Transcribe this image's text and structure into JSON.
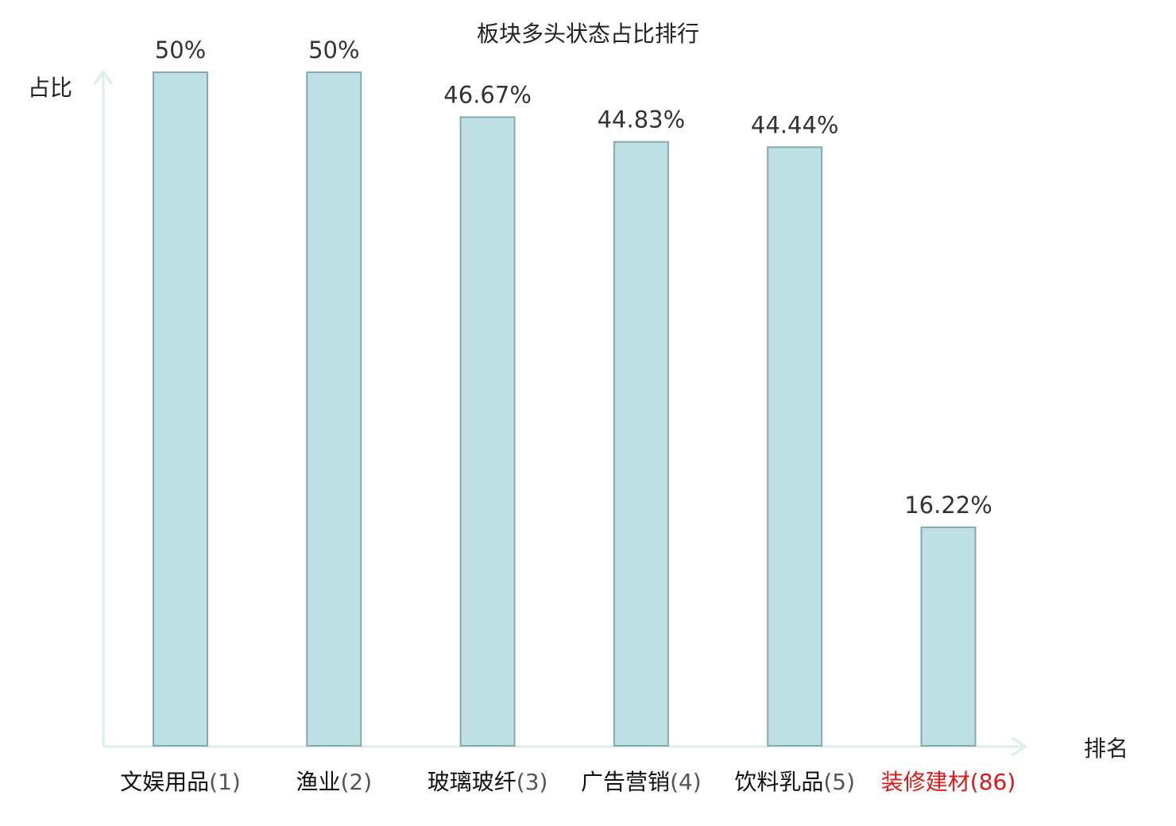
{
  "chart_data": {
    "type": "bar",
    "title": "板块多头状态占比排行",
    "ylabel": "占比",
    "xlabel": "排名",
    "ylim": [
      0,
      50
    ],
    "grid": false,
    "legend": "none",
    "categories": [
      {
        "name": "文娱用品",
        "rank": "(1)",
        "highlight": false
      },
      {
        "name": "渔业",
        "rank": "(2)",
        "highlight": false
      },
      {
        "name": "玻璃玻纤",
        "rank": "(3)",
        "highlight": false
      },
      {
        "name": "广告营销",
        "rank": "(4)",
        "highlight": false
      },
      {
        "name": "饮料乳品",
        "rank": "(5)",
        "highlight": false
      },
      {
        "name": "装修建材",
        "rank": "(86)",
        "highlight": true
      }
    ],
    "values": [
      50,
      50,
      46.67,
      44.83,
      44.44,
      16.22
    ],
    "value_labels": [
      "50%",
      "50%",
      "46.67%",
      "44.83%",
      "44.44%",
      "16.22%"
    ],
    "colors": {
      "bar_fill": "#bce0e3",
      "bar_stroke": "#86a9ad",
      "axis": "#d8efee",
      "text": "#333333",
      "rank_text": "#555555",
      "highlight": "#e01818"
    }
  }
}
